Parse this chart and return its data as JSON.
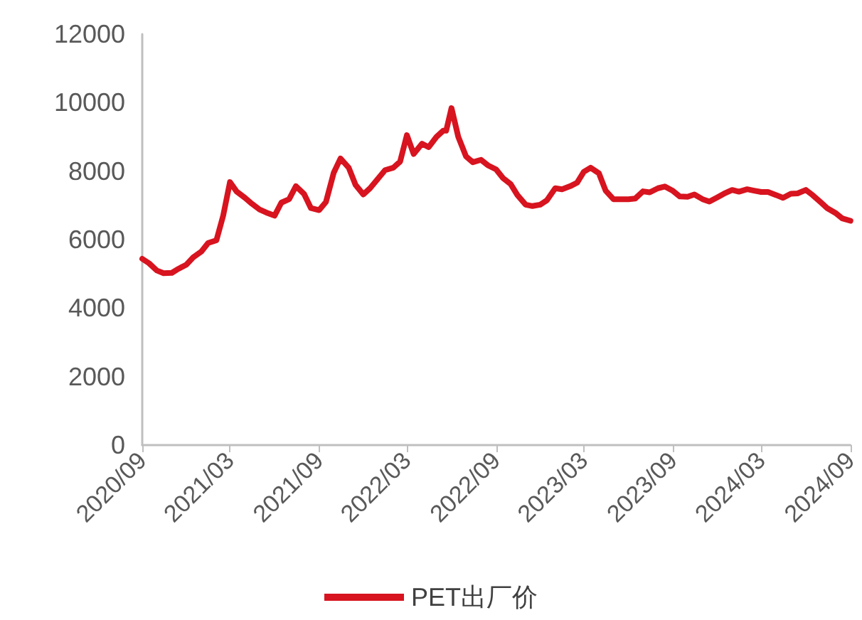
{
  "chart_data": {
    "type": "line",
    "x": [
      "2020-09-01",
      "2020-09-15",
      "2020-10-01",
      "2020-10-15",
      "2020-11-01",
      "2020-11-15",
      "2020-12-01",
      "2020-12-15",
      "2021-01-01",
      "2021-01-15",
      "2021-02-01",
      "2021-02-15",
      "2021-03-01",
      "2021-03-15",
      "2021-04-01",
      "2021-04-15",
      "2021-05-01",
      "2021-05-15",
      "2021-06-01",
      "2021-06-15",
      "2021-07-01",
      "2021-07-15",
      "2021-08-01",
      "2021-08-15",
      "2021-09-01",
      "2021-09-15",
      "2021-10-01",
      "2021-10-15",
      "2021-11-01",
      "2021-11-15",
      "2021-12-01",
      "2021-12-15",
      "2022-01-01",
      "2022-01-15",
      "2022-02-01",
      "2022-02-15",
      "2022-03-01",
      "2022-03-15",
      "2022-04-01",
      "2022-04-15",
      "2022-05-01",
      "2022-05-15",
      "2022-05-21",
      "2022-06-01",
      "2022-06-15",
      "2022-07-01",
      "2022-07-15",
      "2022-08-01",
      "2022-08-15",
      "2022-09-01",
      "2022-09-15",
      "2022-10-01",
      "2022-10-15",
      "2022-11-01",
      "2022-11-15",
      "2022-12-01",
      "2022-12-15",
      "2023-01-01",
      "2023-01-15",
      "2023-02-01",
      "2023-02-15",
      "2023-03-01",
      "2023-03-15",
      "2023-04-01",
      "2023-04-15",
      "2023-05-01",
      "2023-05-15",
      "2023-06-01",
      "2023-06-15",
      "2023-07-01",
      "2023-07-15",
      "2023-08-01",
      "2023-08-15",
      "2023-09-01",
      "2023-09-15",
      "2023-10-01",
      "2023-10-15",
      "2023-11-01",
      "2023-11-15",
      "2023-12-01",
      "2023-12-15",
      "2024-01-01",
      "2024-01-15",
      "2024-02-01",
      "2024-02-15",
      "2024-03-01",
      "2024-03-15",
      "2024-04-01",
      "2024-04-15",
      "2024-05-01",
      "2024-05-15",
      "2024-06-01",
      "2024-06-15",
      "2024-07-01",
      "2024-07-15",
      "2024-08-01",
      "2024-08-15",
      "2024-09-01"
    ],
    "series": [
      {
        "name": "PET出厂价",
        "color": "#d7141f",
        "values": [
          5440,
          5310,
          5100,
          5020,
          5030,
          5150,
          5270,
          5480,
          5650,
          5900,
          5980,
          6700,
          7680,
          7400,
          7220,
          7050,
          6880,
          6790,
          6700,
          7080,
          7180,
          7560,
          7330,
          6920,
          6860,
          7100,
          7950,
          8370,
          8100,
          7600,
          7320,
          7500,
          7790,
          8030,
          8100,
          8280,
          9050,
          8500,
          8800,
          8700,
          9000,
          9180,
          9180,
          9840,
          9000,
          8430,
          8260,
          8330,
          8170,
          8050,
          7800,
          7620,
          7300,
          7020,
          6980,
          7020,
          7150,
          7500,
          7470,
          7560,
          7660,
          7980,
          8100,
          7940,
          7430,
          7180,
          7180,
          7180,
          7200,
          7410,
          7380,
          7500,
          7550,
          7420,
          7260,
          7250,
          7320,
          7180,
          7110,
          7230,
          7340,
          7450,
          7400,
          7470,
          7430,
          7390,
          7390,
          7300,
          7220,
          7340,
          7350,
          7450,
          7300,
          7100,
          6920,
          6780,
          6620,
          6550
        ]
      }
    ],
    "xlim": [
      "2020-09-01",
      "2024-09-01"
    ],
    "xticks": [
      {
        "value": "2020-09-01",
        "label": "2020/09"
      },
      {
        "value": "2021-03-01",
        "label": "2021/03"
      },
      {
        "value": "2021-09-01",
        "label": "2021/09"
      },
      {
        "value": "2022-03-01",
        "label": "2022/03"
      },
      {
        "value": "2022-09-01",
        "label": "2022/09"
      },
      {
        "value": "2023-03-01",
        "label": "2023/03"
      },
      {
        "value": "2023-09-01",
        "label": "2023/09"
      },
      {
        "value": "2024-03-01",
        "label": "2024/03"
      },
      {
        "value": "2024-09-01",
        "label": "2024/09"
      }
    ],
    "ylim": [
      0,
      12000
    ],
    "yticks": [
      0,
      2000,
      4000,
      6000,
      8000,
      10000,
      12000
    ],
    "grid": false,
    "legend": "bottom",
    "marker": "none",
    "line_style": "solid"
  }
}
